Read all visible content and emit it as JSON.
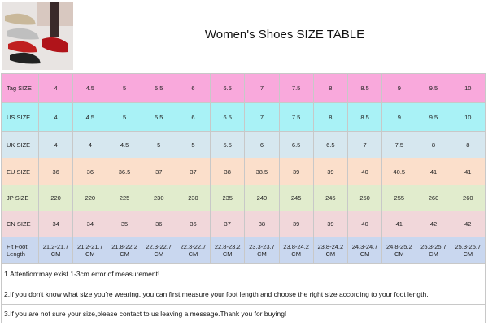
{
  "header": {
    "title": "Women's Shoes SIZE TABLE"
  },
  "table": {
    "rows": [
      [
        "Tag SIZE",
        "4",
        "4.5",
        "5",
        "5.5",
        "6",
        "6.5",
        "7",
        "7.5",
        "8",
        "8.5",
        "9",
        "9.5",
        "10"
      ],
      [
        "US SIZE",
        "4",
        "4.5",
        "5",
        "5.5",
        "6",
        "6.5",
        "7",
        "7.5",
        "8",
        "8.5",
        "9",
        "9.5",
        "10"
      ],
      [
        "UK SIZE",
        "4",
        "4",
        "4.5",
        "5",
        "5",
        "5.5",
        "6",
        "6.5",
        "6.5",
        "7",
        "7.5",
        "8",
        "8"
      ],
      [
        "EU SIZE",
        "36",
        "36",
        "36.5",
        "37",
        "37",
        "38",
        "38.5",
        "39",
        "39",
        "40",
        "40.5",
        "41",
        "41"
      ],
      [
        "JP SIZE",
        "220",
        "220",
        "225",
        "230",
        "230",
        "235",
        "240",
        "245",
        "245",
        "250",
        "255",
        "260",
        "260"
      ],
      [
        "CN SIZE",
        "34",
        "34",
        "35",
        "36",
        "36",
        "37",
        "38",
        "39",
        "39",
        "40",
        "41",
        "42",
        "42"
      ],
      [
        "Fit Foot Length",
        "21.2-21.7\nCM",
        "21.2-21.7\nCM",
        "21.8-22.2\nCM",
        "22.3-22.7\nCM",
        "22.3-22.7\nCM",
        "22.8-23.2\nCM",
        "23.3-23.7\nCM",
        "23.8-24.2\nCM",
        "23.8-24.2\nCM",
        "24.3-24.7\nCM",
        "24.8-25.2\nCM",
        "25.3-25.7\nCM",
        "25.3-25.7\nCM"
      ]
    ]
  },
  "notes": [
    "1.Attention:may exist 1-3cm error of measurement!",
    "2.If you don't know what size you're wearing, you can first measure your foot length and choose the right size according to your foot length.",
    "3.If you are not sure your size,please contact to us leaving a message.Thank you for buying!"
  ]
}
